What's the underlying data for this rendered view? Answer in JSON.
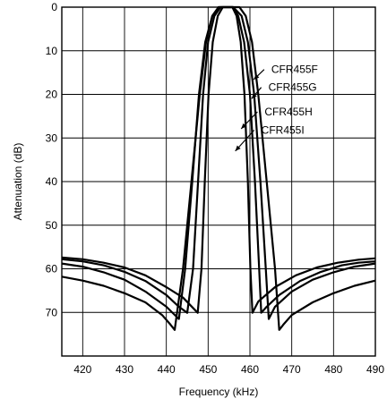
{
  "chart_data": {
    "type": "line",
    "title": "",
    "xlabel": "Frequency (kHz)",
    "ylabel": "Attenuation (dB)",
    "xlim": [
      415,
      490
    ],
    "ylim": [
      0,
      80
    ],
    "y_inverted": true,
    "grid": true,
    "xticks": [
      420,
      430,
      440,
      450,
      460,
      470,
      480,
      490
    ],
    "yticks": [
      0,
      10,
      20,
      30,
      40,
      50,
      60,
      70
    ],
    "series": [
      {
        "name": "CFR455F",
        "points": [
          [
            415,
            61.8
          ],
          [
            420,
            62.7
          ],
          [
            425,
            63.9
          ],
          [
            430,
            65.6
          ],
          [
            435,
            67.7
          ],
          [
            439,
            70.6
          ],
          [
            441,
            72.8
          ],
          [
            442,
            74.0
          ],
          [
            444,
            60
          ],
          [
            446,
            40
          ],
          [
            448,
            20
          ],
          [
            449.5,
            8
          ],
          [
            451,
            2
          ],
          [
            452.5,
            0
          ],
          [
            455,
            0
          ],
          [
            457.5,
            0
          ],
          [
            459,
            2
          ],
          [
            460.5,
            8
          ],
          [
            462,
            20
          ],
          [
            464,
            40
          ],
          [
            466,
            60
          ],
          [
            467,
            74.0
          ],
          [
            468,
            72.8
          ],
          [
            470,
            70.6
          ],
          [
            475,
            67.7
          ],
          [
            480,
            65.6
          ],
          [
            485,
            63.9
          ],
          [
            490,
            62.7
          ]
        ]
      },
      {
        "name": "CFR455G",
        "points": [
          [
            415,
            58.8
          ],
          [
            420,
            59.5
          ],
          [
            425,
            60.8
          ],
          [
            430,
            62.5
          ],
          [
            435,
            65.2
          ],
          [
            440,
            68.7
          ],
          [
            443,
            71.5
          ],
          [
            444.5,
            60
          ],
          [
            446.2,
            40
          ],
          [
            447.8,
            20
          ],
          [
            449.3,
            8
          ],
          [
            451,
            2
          ],
          [
            452.5,
            0
          ],
          [
            456,
            0
          ],
          [
            458,
            2
          ],
          [
            459.5,
            8
          ],
          [
            461,
            20
          ],
          [
            462.5,
            40
          ],
          [
            463.8,
            60
          ],
          [
            464.5,
            71.5
          ],
          [
            466,
            68.7
          ],
          [
            470,
            65.2
          ],
          [
            475,
            62.5
          ],
          [
            480,
            60.8
          ],
          [
            485,
            59.5
          ],
          [
            490,
            58.8
          ]
        ]
      },
      {
        "name": "CFR455H",
        "points": [
          [
            415,
            57.8
          ],
          [
            420,
            58.3
          ],
          [
            425,
            59.2
          ],
          [
            430,
            60.7
          ],
          [
            435,
            62.8
          ],
          [
            440,
            66.0
          ],
          [
            443,
            68.7
          ],
          [
            445,
            70.1
          ],
          [
            446.4,
            60
          ],
          [
            447.6,
            40
          ],
          [
            448.8,
            20
          ],
          [
            450,
            8
          ],
          [
            451.5,
            2
          ],
          [
            453,
            0
          ],
          [
            456,
            0
          ],
          [
            457.2,
            2
          ],
          [
            458.6,
            8
          ],
          [
            460,
            20
          ],
          [
            461.2,
            40
          ],
          [
            462.2,
            60
          ],
          [
            462.7,
            70.1
          ],
          [
            464,
            68.7
          ],
          [
            467,
            66.0
          ],
          [
            472,
            62.8
          ],
          [
            477,
            60.7
          ],
          [
            482,
            59.2
          ],
          [
            486,
            58.6
          ],
          [
            490,
            58.3
          ]
        ]
      },
      {
        "name": "CFR455I",
        "points": [
          [
            415,
            57.4
          ],
          [
            420,
            57.8
          ],
          [
            425,
            58.6
          ],
          [
            430,
            59.7
          ],
          [
            435,
            61.5
          ],
          [
            440,
            64.2
          ],
          [
            444,
            66.6
          ],
          [
            447.5,
            70.1
          ],
          [
            448.4,
            60
          ],
          [
            449.2,
            40
          ],
          [
            450.1,
            20
          ],
          [
            451.1,
            8
          ],
          [
            452.3,
            2
          ],
          [
            453.5,
            0
          ],
          [
            455.8,
            0
          ],
          [
            456.8,
            2
          ],
          [
            457.8,
            8
          ],
          [
            458.7,
            20
          ],
          [
            459.5,
            40
          ],
          [
            460.1,
            60
          ],
          [
            460.6,
            70.1
          ],
          [
            462,
            67.5
          ],
          [
            466,
            64.2
          ],
          [
            471,
            61.5
          ],
          [
            476,
            59.7
          ],
          [
            481,
            58.6
          ],
          [
            486,
            57.9
          ],
          [
            490,
            57.6
          ]
        ]
      }
    ],
    "annotations": [
      {
        "label": "CFR455F",
        "arrow_from": [
          463.4,
          14.3
        ],
        "arrow_to": [
          460.9,
          16.6
        ]
      },
      {
        "label": "CFR455G",
        "arrow_from": [
          462.7,
          18.4
        ],
        "arrow_to": [
          460.4,
          21.0
        ]
      },
      {
        "label": "CFR455H",
        "arrow_from": [
          461.8,
          24.0
        ],
        "arrow_to": [
          457.9,
          27.9
        ]
      },
      {
        "label": "CFR455I",
        "arrow_from": [
          461.0,
          28.2
        ],
        "arrow_to": [
          456.5,
          33.0
        ]
      }
    ]
  }
}
